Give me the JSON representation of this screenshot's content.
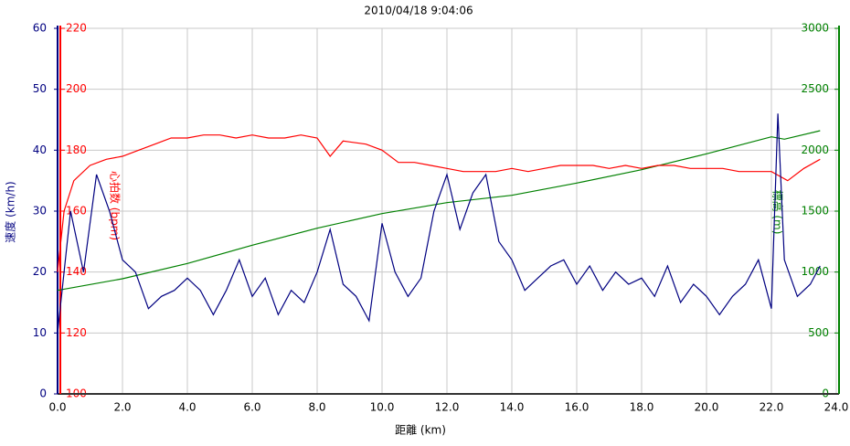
{
  "chart_data": {
    "type": "line",
    "title": "2010/04/18 9:04:06",
    "xlabel": "距離 (km)",
    "ylabel": "速度 (km/h)",
    "y2label": "心拍数 (bpm)",
    "y3label": "標高 (m)",
    "xlim": [
      0,
      24
    ],
    "xticks": [
      {
        "value": 0,
        "label": "0.0"
      },
      {
        "value": 2,
        "label": "2.0"
      },
      {
        "value": 4,
        "label": "4.0"
      },
      {
        "value": 6,
        "label": "6.0"
      },
      {
        "value": 8,
        "label": "8.0"
      },
      {
        "value": 10,
        "label": "10.0"
      },
      {
        "value": 12,
        "label": "12.0"
      },
      {
        "value": 14,
        "label": "14.0"
      },
      {
        "value": 16,
        "label": "16.0"
      },
      {
        "value": 18,
        "label": "18.0"
      },
      {
        "value": 20,
        "label": "20.0"
      },
      {
        "value": 22,
        "label": "22.0"
      },
      {
        "value": 24,
        "label": "24.0"
      }
    ],
    "ylim": [
      0,
      60
    ],
    "yticks": [
      0,
      10,
      20,
      30,
      40,
      50,
      60
    ],
    "y2lim": [
      100,
      220
    ],
    "y2ticks": [
      100,
      120,
      140,
      160,
      180,
      200,
      220
    ],
    "y3lim": [
      0,
      3000
    ],
    "y3ticks": [
      0,
      500,
      1000,
      1500,
      2000,
      2500,
      3000
    ],
    "grid": true,
    "series": [
      {
        "name": "速度",
        "axis": "y",
        "color": "#000080",
        "x": [
          0,
          0.4,
          0.8,
          1.2,
          1.6,
          2.0,
          2.4,
          2.8,
          3.2,
          3.6,
          4.0,
          4.4,
          4.8,
          5.2,
          5.6,
          6.0,
          6.4,
          6.8,
          7.2,
          7.6,
          8.0,
          8.4,
          8.8,
          9.2,
          9.6,
          10.0,
          10.4,
          10.8,
          11.2,
          11.6,
          12.0,
          12.4,
          12.8,
          13.2,
          13.6,
          14.0,
          14.4,
          14.8,
          15.2,
          15.6,
          16.0,
          16.4,
          16.8,
          17.2,
          17.6,
          18.0,
          18.4,
          18.8,
          19.2,
          19.6,
          20.0,
          20.4,
          20.8,
          21.2,
          21.6,
          22.0,
          22.2,
          22.4,
          22.8,
          23.2,
          23.5
        ],
        "values": [
          10,
          30,
          20,
          36,
          30,
          22,
          20,
          14,
          16,
          17,
          19,
          17,
          13,
          17,
          22,
          16,
          19,
          13,
          17,
          15,
          20,
          27,
          18,
          16,
          12,
          28,
          20,
          16,
          19,
          30,
          36,
          27,
          33,
          36,
          25,
          22,
          17,
          19,
          21,
          22,
          18,
          21,
          17,
          20,
          18,
          19,
          16,
          21,
          15,
          18,
          16,
          13,
          16,
          18,
          22,
          14,
          46,
          22,
          16,
          18,
          21
        ]
      },
      {
        "name": "心拍数",
        "axis": "y2",
        "color": "#ff0000",
        "x": [
          0,
          0.2,
          0.5,
          1.0,
          1.5,
          2.0,
          2.5,
          3.0,
          3.5,
          4.0,
          4.5,
          5.0,
          5.5,
          6.0,
          6.5,
          7.0,
          7.5,
          8.0,
          8.4,
          8.8,
          9.5,
          10.0,
          10.5,
          11.0,
          11.5,
          12.0,
          12.5,
          13.0,
          13.5,
          14.0,
          14.5,
          15.0,
          15.5,
          16.0,
          16.5,
          17.0,
          17.5,
          18.0,
          18.5,
          19.0,
          19.5,
          20.0,
          20.5,
          21.0,
          21.5,
          22.0,
          22.5,
          23.0,
          23.5
        ],
        "values": [
          140,
          160,
          170,
          175,
          177,
          178,
          180,
          182,
          184,
          184,
          185,
          185,
          184,
          185,
          184,
          184,
          185,
          184,
          178,
          183,
          182,
          180,
          176,
          176,
          175,
          174,
          173,
          173,
          173,
          174,
          173,
          174,
          175,
          175,
          175,
          174,
          175,
          174,
          175,
          175,
          174,
          174,
          174,
          173,
          173,
          173,
          170,
          174,
          177
        ]
      },
      {
        "name": "標高",
        "axis": "y3",
        "color": "#008000",
        "x": [
          0,
          2,
          4,
          6,
          8,
          10,
          12,
          14,
          16,
          18,
          20,
          22,
          22.4,
          23.5
        ],
        "values": [
          850,
          945,
          1070,
          1220,
          1360,
          1480,
          1570,
          1630,
          1730,
          1840,
          1970,
          2110,
          2090,
          2160
        ]
      }
    ]
  }
}
